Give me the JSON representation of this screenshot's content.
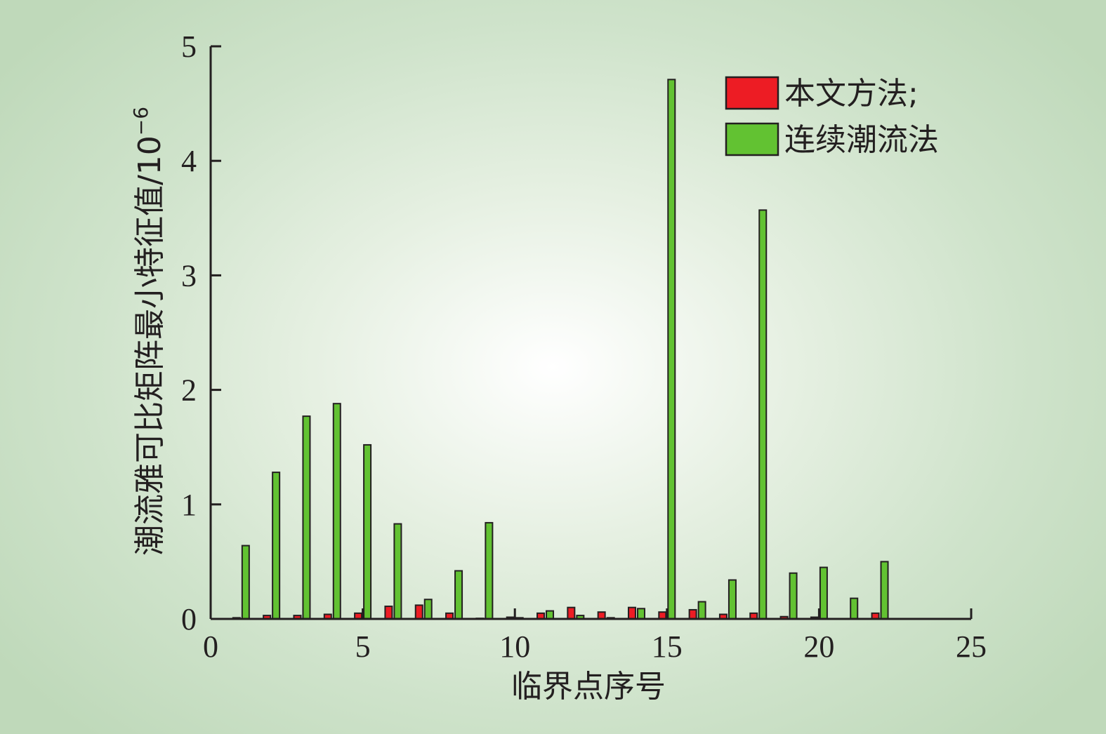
{
  "chart_data": {
    "type": "bar",
    "xlabel": "临界点序号",
    "ylabel_main": "潮流雅可比矩阵最小特征值/10",
    "ylabel_exp": "−6",
    "xlim": [
      0,
      25
    ],
    "ylim": [
      0,
      5
    ],
    "xticks": [
      "0",
      "5",
      "10",
      "15",
      "20",
      "25"
    ],
    "yticks": [
      "0",
      "1",
      "2",
      "3",
      "4",
      "5"
    ],
    "grid": false,
    "legend_position": "top-right",
    "x": [
      1,
      2,
      3,
      4,
      5,
      6,
      7,
      8,
      9,
      10,
      11,
      12,
      13,
      14,
      15,
      16,
      17,
      18,
      19,
      20,
      21,
      22
    ],
    "series": [
      {
        "name": "本文方法;",
        "color": "#ed1c24",
        "values": [
          0.01,
          0.03,
          0.03,
          0.04,
          0.05,
          0.11,
          0.12,
          0.05,
          0.005,
          0.015,
          0.05,
          0.1,
          0.06,
          0.1,
          0.06,
          0.08,
          0.04,
          0.05,
          0.02,
          0.015,
          0.0,
          0.05
        ]
      },
      {
        "name": "连续潮流法",
        "color": "#62c232",
        "values": [
          0.64,
          1.28,
          1.77,
          1.88,
          1.52,
          0.83,
          0.17,
          0.42,
          0.84,
          0.01,
          0.07,
          0.03,
          0.01,
          0.09,
          4.71,
          0.15,
          0.34,
          3.57,
          0.4,
          0.45,
          0.18,
          0.5
        ]
      }
    ]
  }
}
